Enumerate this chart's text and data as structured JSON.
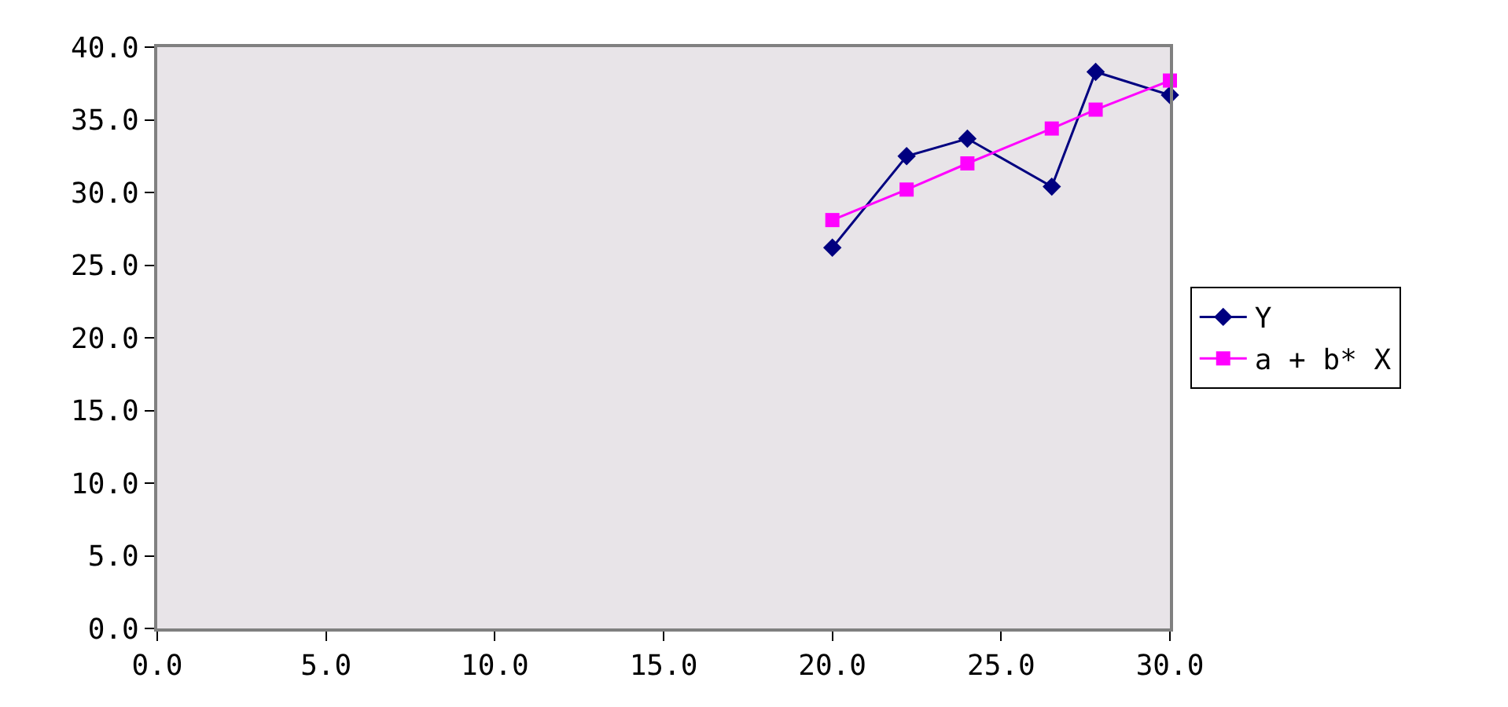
{
  "chart_data": {
    "type": "line",
    "x": [
      20.0,
      22.2,
      24.0,
      26.5,
      27.8,
      30.0
    ],
    "series": [
      {
        "name": "Y",
        "color": "#000080",
        "marker": "diamond",
        "values": [
          26.2,
          32.5,
          33.7,
          30.4,
          38.3,
          36.7
        ]
      },
      {
        "name": "a + b* X",
        "color": "#ff00ff",
        "marker": "square",
        "values": [
          28.1,
          30.2,
          32.0,
          34.4,
          35.7,
          37.7
        ]
      }
    ],
    "xlim": [
      0,
      30
    ],
    "xticks": [
      {
        "value": 0,
        "label": "0.0"
      },
      {
        "value": 5,
        "label": "5.0"
      },
      {
        "value": 10,
        "label": "10.0"
      },
      {
        "value": 15,
        "label": "15.0"
      },
      {
        "value": 20,
        "label": "20.0"
      },
      {
        "value": 25,
        "label": "25.0"
      },
      {
        "value": 30,
        "label": "30.0"
      }
    ],
    "ylim": [
      0,
      40
    ],
    "yticks": [
      {
        "value": 0,
        "label": "0.0"
      },
      {
        "value": 5,
        "label": "5.0"
      },
      {
        "value": 10,
        "label": "10.0"
      },
      {
        "value": 15,
        "label": "15.0"
      },
      {
        "value": 20,
        "label": "20.0"
      },
      {
        "value": 25,
        "label": "25.0"
      },
      {
        "value": 30,
        "label": "30.0"
      },
      {
        "value": 35,
        "label": "35.0"
      },
      {
        "value": 40,
        "label": "40.0"
      }
    ],
    "grid": false,
    "legend": "right",
    "line_style": "solid"
  }
}
